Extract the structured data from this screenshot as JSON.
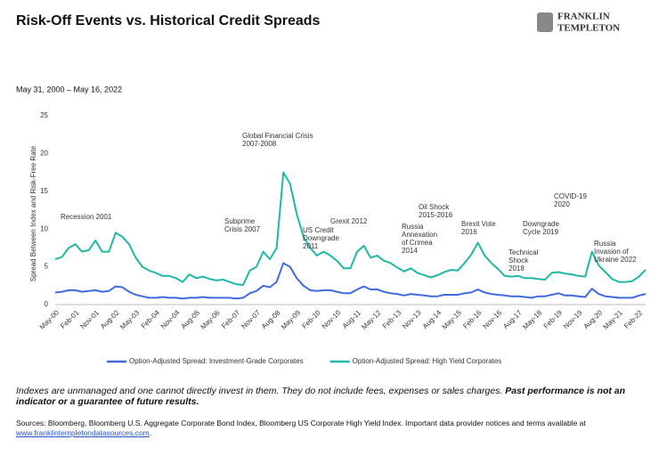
{
  "header": {
    "title": "Risk-Off Events vs. Historical Credit Spreads",
    "logo": [
      "FRANKLIN",
      "TEMPLETON"
    ]
  },
  "chart_data": {
    "type": "line",
    "subtitle": "May 31, 2000 – May 16, 2022",
    "y_label": "Spread Between Index and Risk-Free Rate",
    "categories": [
      "May-00",
      null,
      null,
      "Feb-01",
      null,
      null,
      "Nov-01",
      null,
      null,
      "Aug-02",
      null,
      null,
      "May-03",
      null,
      null,
      "Feb-04",
      null,
      null,
      "Nov-04",
      null,
      null,
      "Aug-05",
      null,
      null,
      "May-06",
      null,
      null,
      "Feb-07",
      null,
      null,
      "Nov-07",
      null,
      null,
      "Aug-08",
      null,
      null,
      "May-09",
      null,
      null,
      "Feb-10",
      null,
      null,
      "Nov-10",
      null,
      null,
      "Aug-11",
      null,
      null,
      "May-12",
      null,
      null,
      "Feb-13",
      null,
      null,
      "Nov-13",
      null,
      null,
      "Aug-14",
      null,
      null,
      "May-15",
      null,
      null,
      "Feb-16",
      null,
      null,
      "Nov-16",
      null,
      null,
      "Aug-17",
      null,
      null,
      "May-18",
      null,
      null,
      "Feb-19",
      null,
      null,
      "Nov-19",
      null,
      null,
      "Aug-20",
      null,
      null,
      "May-21",
      null,
      null,
      "Feb-22",
      null
    ],
    "series": [
      {
        "name": "Option-Adjusted Spread: Investment-Grade Corporates",
        "color": "#4169e1",
        "values": [
          1.6,
          1.7,
          1.9,
          1.9,
          1.7,
          1.8,
          1.9,
          1.7,
          1.8,
          2.4,
          2.3,
          1.7,
          1.3,
          1.1,
          0.9,
          0.9,
          1.0,
          0.9,
          0.9,
          0.8,
          0.9,
          0.9,
          1.0,
          0.9,
          0.9,
          0.9,
          0.9,
          0.8,
          0.9,
          1.5,
          1.8,
          2.5,
          2.3,
          3.0,
          5.5,
          5.0,
          3.5,
          2.5,
          1.9,
          1.8,
          1.9,
          1.9,
          1.7,
          1.5,
          1.5,
          2.0,
          2.4,
          2.0,
          2.0,
          1.7,
          1.5,
          1.4,
          1.2,
          1.4,
          1.3,
          1.2,
          1.1,
          1.1,
          1.3,
          1.3,
          1.3,
          1.5,
          1.6,
          2.0,
          1.6,
          1.4,
          1.3,
          1.2,
          1.1,
          1.1,
          1.0,
          0.9,
          1.1,
          1.1,
          1.3,
          1.5,
          1.2,
          1.2,
          1.1,
          1.0,
          2.1,
          1.4,
          1.1,
          1.0,
          0.9,
          0.9,
          0.9,
          1.2,
          1.4
        ]
      },
      {
        "name": "Option-Adjusted Spread: High Yield Corporates",
        "color": "#1fb8a6",
        "values": [
          6.0,
          6.3,
          7.5,
          8.0,
          7.0,
          7.2,
          8.5,
          7.0,
          7.0,
          9.5,
          9.0,
          8.0,
          6.2,
          5.0,
          4.5,
          4.2,
          3.8,
          3.8,
          3.5,
          3.0,
          4.0,
          3.5,
          3.7,
          3.4,
          3.2,
          3.3,
          3.0,
          2.7,
          2.6,
          4.5,
          5.0,
          7.0,
          6.0,
          7.5,
          17.5,
          16.0,
          12.0,
          9.0,
          7.5,
          6.5,
          7.0,
          6.5,
          5.8,
          4.8,
          4.8,
          7.0,
          7.8,
          6.2,
          6.5,
          5.8,
          5.5,
          4.9,
          4.4,
          4.8,
          4.2,
          3.9,
          3.6,
          3.9,
          4.3,
          4.6,
          4.5,
          5.5,
          6.6,
          8.2,
          6.5,
          5.5,
          4.7,
          3.8,
          3.7,
          3.8,
          3.5,
          3.5,
          3.4,
          3.3,
          4.2,
          4.3,
          4.1,
          4.0,
          3.8,
          3.7,
          7.0,
          5.2,
          4.3,
          3.4,
          3.0,
          3.0,
          3.1,
          3.7,
          4.6
        ]
      }
    ],
    "ylim": [
      0,
      25
    ],
    "yticks": [
      0,
      5,
      10,
      15,
      20,
      25
    ],
    "grid": false,
    "annotations": [
      {
        "lines": [
          "Recession 2001"
        ]
      },
      {
        "lines": [
          "Global Financial Crisis",
          "2007-2008"
        ]
      },
      {
        "lines": [
          "Subprime",
          "Crisis 2007"
        ]
      },
      {
        "lines": [
          "US Credit",
          "Downgrade",
          "2011"
        ]
      },
      {
        "lines": [
          "Grexit 2012"
        ]
      },
      {
        "lines": [
          "Oil Shock",
          "2015-2016"
        ]
      },
      {
        "lines": [
          "Russia",
          "Annexation",
          "of Crimea",
          "2014"
        ]
      },
      {
        "lines": [
          "Brexit Vote",
          "2016"
        ]
      },
      {
        "lines": [
          "COVID-19",
          "2020"
        ]
      },
      {
        "lines": [
          "Downgrade",
          "Cycle 2019"
        ]
      },
      {
        "lines": [
          "Technical",
          "Shock",
          "2018"
        ]
      },
      {
        "lines": [
          "Russia",
          "Invasion of",
          "Ukraine 2022"
        ]
      }
    ]
  },
  "footer": {
    "disclaimer": "Indexes are unmanaged and one cannot directly invest in them. They do not include fees, expenses or sales charges.",
    "disclaimer_bold": "Past performance is not an indicator or a guarantee of future results.",
    "sources": "Sources: Bloomberg, Bloomberg U.S. Aggregate Corporate Bond Index, Bloomberg US Corporate High Yield Index. Important data provider notices and terms available at",
    "link": "www.franklintempletondatasources.com",
    "end": "."
  }
}
